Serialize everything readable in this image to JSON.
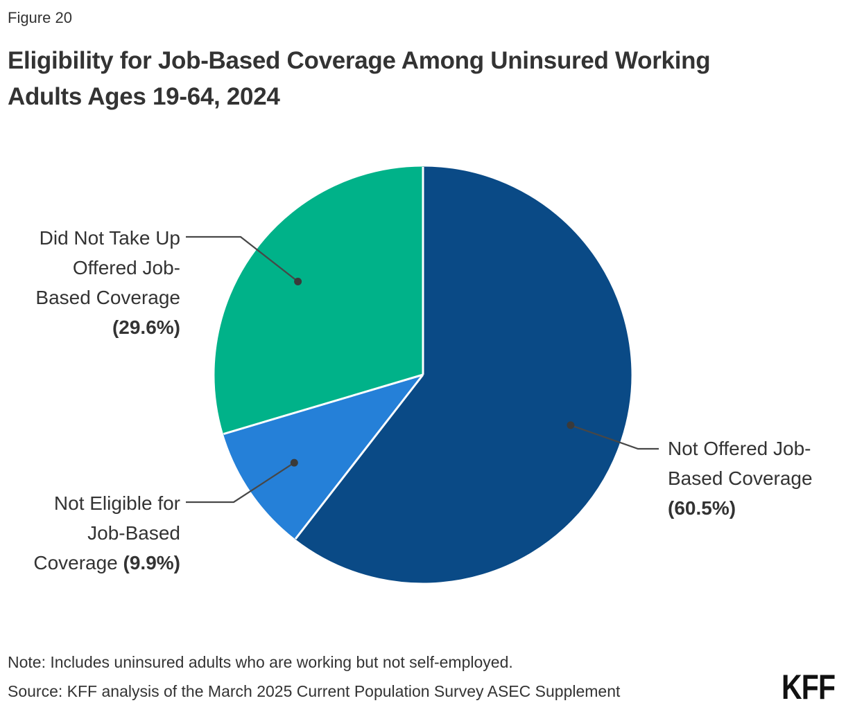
{
  "figure_label": "Figure 20",
  "title": {
    "lines": [
      "Eligibility for Job-Based Coverage Among Uninsured Working",
      "Adults Ages 19-64, 2024"
    ]
  },
  "chart_data": {
    "type": "pie",
    "title": "Eligibility for Job-Based Coverage Among Uninsured Working Adults Ages 19-64, 2024",
    "start_angle_deg": 0,
    "direction": "clockwise",
    "legend_position": "callout-labels",
    "slice_border_color": "#FFFFFF",
    "leader_line_color": "#474747",
    "leader_dot_color": "#3A3A3A",
    "slices": [
      {
        "label": "Not Offered Job-Based Coverage",
        "value_pct": 60.5,
        "pct_text": "(60.5%)",
        "color": "#0A4A86",
        "label_lines": [
          "Not Offered Job-",
          "Based Coverage",
          "(60.5%)"
        ]
      },
      {
        "label": "Not Eligible for Job-Based Coverage",
        "value_pct": 9.9,
        "pct_text": "(9.9%)",
        "color": "#2580D8",
        "label_lines": [
          "Not Eligible for",
          "Job-Based",
          "Coverage (9.9%)"
        ]
      },
      {
        "label": "Did Not Take Up Offered Job-Based Coverage",
        "value_pct": 29.6,
        "pct_text": "(29.6%)",
        "color": "#00B289",
        "label_lines": [
          "Did Not Take Up",
          "Offered Job-",
          "Based Coverage",
          "(29.6%)"
        ]
      }
    ]
  },
  "note": "Note: Includes uninsured adults who are working but not self-employed.",
  "source": "Source: KFF analysis of the March 2025 Current Population Survey ASEC Supplement",
  "logo_text": "KFF"
}
